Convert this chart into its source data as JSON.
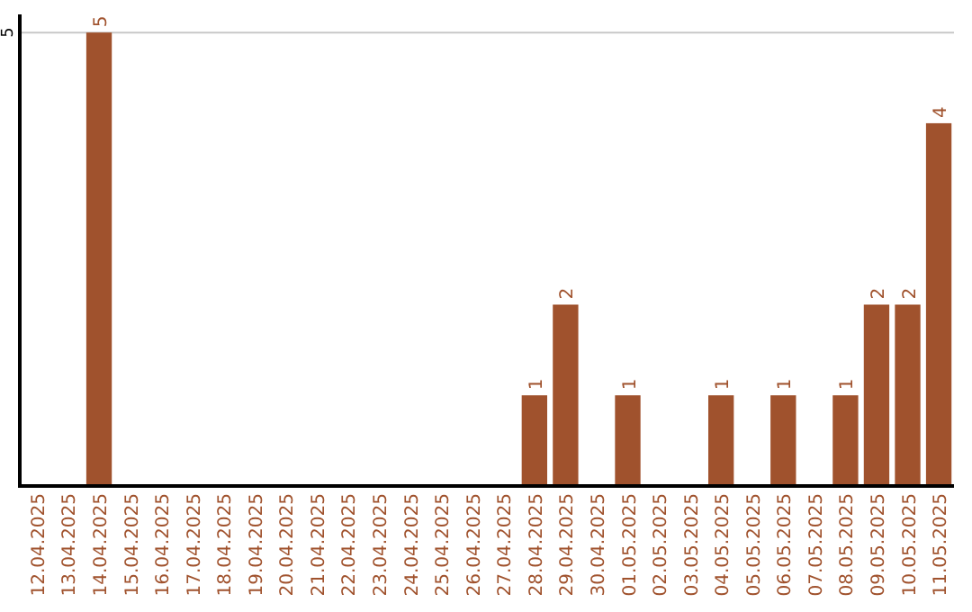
{
  "chart_data": {
    "type": "bar",
    "categories": [
      "12.04.2025",
      "13.04.2025",
      "14.04.2025",
      "15.04.2025",
      "16.04.2025",
      "17.04.2025",
      "18.04.2025",
      "19.04.2025",
      "20.04.2025",
      "21.04.2025",
      "22.04.2025",
      "23.04.2025",
      "24.04.2025",
      "25.04.2025",
      "26.04.2025",
      "27.04.2025",
      "28.04.2025",
      "29.04.2025",
      "30.04.2025",
      "01.05.2025",
      "02.05.2025",
      "03.05.2025",
      "04.05.2025",
      "05.05.2025",
      "06.05.2025",
      "07.05.2025",
      "08.05.2025",
      "09.05.2025",
      "10.05.2025",
      "11.05.2025"
    ],
    "values": [
      0,
      0,
      5,
      0,
      0,
      0,
      0,
      0,
      0,
      0,
      0,
      0,
      0,
      0,
      0,
      0,
      1,
      2,
      0,
      1,
      0,
      0,
      1,
      0,
      1,
      0,
      1,
      2,
      2,
      4
    ],
    "value_labels": [
      null,
      null,
      "5",
      null,
      null,
      null,
      null,
      null,
      null,
      null,
      null,
      null,
      null,
      null,
      null,
      null,
      "1",
      "2",
      null,
      "1",
      null,
      null,
      "1",
      null,
      "1",
      null,
      "1",
      "2",
      "2",
      "4"
    ],
    "color": "#a0522d",
    "ylim": [
      0,
      5.2
    ],
    "yticks": [
      5
    ],
    "grid": "y"
  }
}
